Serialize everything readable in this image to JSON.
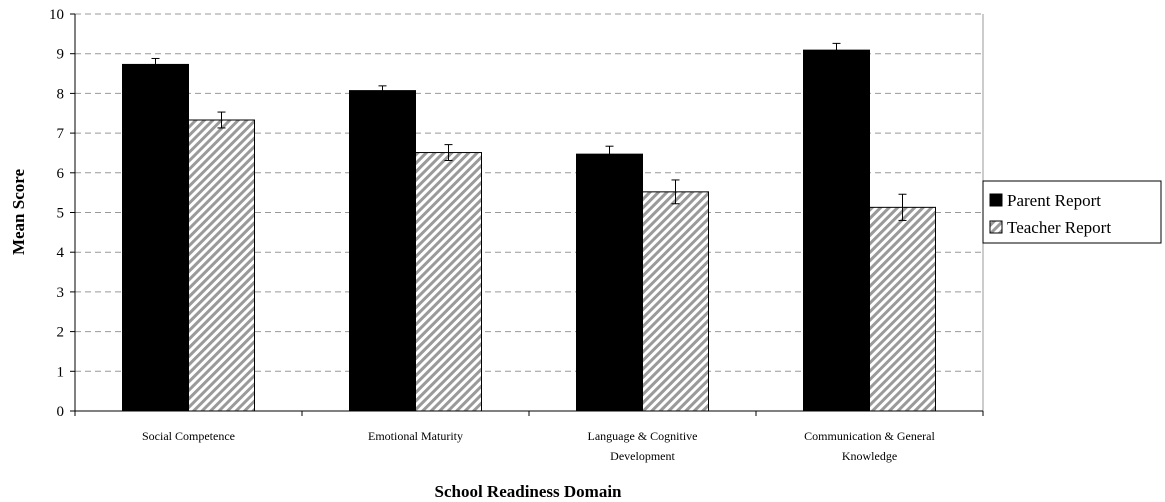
{
  "chart_data": {
    "type": "bar",
    "xlabel": "School Readiness Domain",
    "ylabel": "Mean Score",
    "ylim": [
      0,
      10
    ],
    "yticks": [
      0,
      1,
      2,
      3,
      4,
      5,
      6,
      7,
      8,
      9,
      10
    ],
    "grid": "horizontal dashed",
    "legend_position": "right",
    "categories": [
      [
        "Social Competence"
      ],
      [
        "Emotional Maturity"
      ],
      [
        "Language & Cognitive",
        "Development"
      ],
      [
        "Communication & General",
        "Knowledge"
      ]
    ],
    "series": [
      {
        "name": "Parent Report",
        "color": "#000000",
        "fill": "solid",
        "values": [
          8.73,
          8.07,
          6.47,
          9.09
        ],
        "error": [
          0.15,
          0.12,
          0.2,
          0.17
        ]
      },
      {
        "name": "Teacher Report",
        "color": "#b0b0b0",
        "fill": "diagonal-stripes",
        "values": [
          7.33,
          6.51,
          5.52,
          5.13
        ],
        "error": [
          0.2,
          0.2,
          0.3,
          0.33
        ]
      }
    ]
  }
}
